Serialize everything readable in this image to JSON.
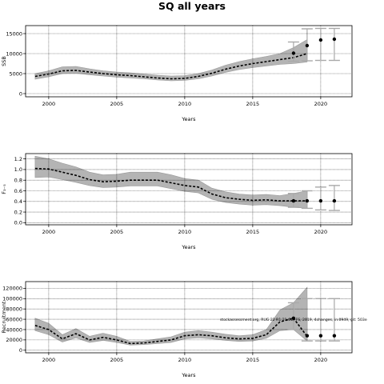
{
  "title": "SQ all years",
  "chart_data": [
    {
      "type": "line",
      "ylabel": "SSB",
      "xlabel": "Years",
      "xlim": [
        1998.3,
        2022.3
      ],
      "ylim": [
        -800,
        17000
      ],
      "xticks": [
        2000,
        2005,
        2010,
        2015,
        2020
      ],
      "yticks": [
        0,
        5000,
        10000,
        15000
      ],
      "ytick_labels": [
        "0",
        "5000",
        "10000",
        "15000"
      ],
      "grid": true,
      "series": [
        {
          "x": [
            1999,
            2000,
            2001,
            2002,
            2003,
            2004,
            2005,
            2006,
            2007,
            2008,
            2009,
            2010,
            2011,
            2012,
            2013,
            2014,
            2015,
            2016,
            2017,
            2018,
            2019
          ],
          "values": [
            4300,
            4900,
            5700,
            5800,
            5400,
            5000,
            4700,
            4500,
            4200,
            3900,
            3700,
            3800,
            4300,
            5100,
            6100,
            6900,
            7500,
            8000,
            8500,
            9000,
            10000
          ],
          "lower": [
            3600,
            4200,
            5000,
            5100,
            4700,
            4400,
            4100,
            3900,
            3700,
            3400,
            3200,
            3300,
            3700,
            4400,
            5300,
            6000,
            6500,
            6900,
            7300,
            7500,
            7900
          ],
          "upper": [
            5000,
            5700,
            6700,
            6800,
            6200,
            5700,
            5400,
            5200,
            4900,
            4600,
            4400,
            4500,
            5000,
            5900,
            7100,
            8000,
            8700,
            9300,
            10000,
            11500,
            13500
          ]
        }
      ],
      "projection": {
        "x": [
          2018,
          2019,
          2020,
          2021
        ],
        "values": [
          10100,
          12000,
          13400,
          13600
        ],
        "lower": [
          8100,
          8200,
          8300,
          8300
        ],
        "upper": [
          12900,
          16200,
          16300,
          16300
        ]
      }
    },
    {
      "type": "line",
      "ylabel": "F₃₋₅",
      "xlabel": "Years",
      "xlim": [
        1998.3,
        2022.3
      ],
      "ylim": [
        -0.04,
        1.3
      ],
      "xticks": [
        2000,
        2005,
        2010,
        2015,
        2020
      ],
      "yticks": [
        0.0,
        0.2,
        0.4,
        0.6,
        0.8,
        1.0,
        1.2
      ],
      "ytick_labels": [
        "0.0",
        "0.2",
        "0.4",
        "0.6",
        "0.8",
        "1.0",
        "1.2"
      ],
      "grid": true,
      "series": [
        {
          "x": [
            1999,
            2000,
            2001,
            2002,
            2003,
            2004,
            2005,
            2006,
            2007,
            2008,
            2009,
            2010,
            2011,
            2012,
            2013,
            2014,
            2015,
            2016,
            2017,
            2018,
            2019
          ],
          "values": [
            1.02,
            1.01,
            0.95,
            0.89,
            0.81,
            0.77,
            0.78,
            0.8,
            0.8,
            0.8,
            0.75,
            0.7,
            0.67,
            0.54,
            0.47,
            0.44,
            0.42,
            0.43,
            0.41,
            0.41,
            0.41
          ],
          "lower": [
            0.85,
            0.86,
            0.81,
            0.76,
            0.7,
            0.66,
            0.67,
            0.69,
            0.69,
            0.69,
            0.64,
            0.59,
            0.56,
            0.44,
            0.38,
            0.35,
            0.33,
            0.34,
            0.32,
            0.29,
            0.27
          ],
          "upper": [
            1.25,
            1.2,
            1.12,
            1.05,
            0.95,
            0.9,
            0.91,
            0.95,
            0.95,
            0.95,
            0.9,
            0.83,
            0.8,
            0.65,
            0.58,
            0.54,
            0.52,
            0.53,
            0.51,
            0.55,
            0.6
          ]
        }
      ],
      "projection": {
        "x": [
          2018,
          2019,
          2020,
          2021
        ],
        "values": [
          0.41,
          0.41,
          0.41,
          0.41
        ],
        "lower": [
          0.29,
          0.27,
          0.24,
          0.23
        ],
        "upper": [
          0.55,
          0.6,
          0.67,
          0.7
        ]
      }
    },
    {
      "type": "line",
      "ylabel": "Recruitment",
      "xlabel": "Years",
      "xlim": [
        1998.3,
        2022.3
      ],
      "ylim": [
        -5000,
        133000
      ],
      "xticks": [
        2000,
        2005,
        2010,
        2015,
        2020
      ],
      "yticks": [
        0,
        20000,
        40000,
        60000,
        80000,
        100000,
        120000
      ],
      "ytick_labels": [
        "0",
        "20000",
        "40000",
        "60000",
        "80000",
        "100000",
        "120000"
      ],
      "grid": true,
      "annotation": "stockassessment.org, RUG 22 R1 21 GB, FS, 2019, 4changes, in.0949, git: 503e",
      "series": [
        {
          "x": [
            1999,
            2000,
            2001,
            2002,
            2003,
            2004,
            2005,
            2006,
            2007,
            2008,
            2009,
            2010,
            2011,
            2012,
            2013,
            2014,
            2015,
            2016,
            2017,
            2018,
            2019
          ],
          "values": [
            48000,
            40000,
            22000,
            32000,
            20000,
            25000,
            20000,
            13000,
            14000,
            17000,
            20000,
            28000,
            30000,
            28000,
            24000,
            22000,
            23000,
            30000,
            55000,
            62000,
            27000
          ],
          "lower": [
            38000,
            30000,
            16000,
            24000,
            15000,
            19000,
            15000,
            10000,
            11000,
            13000,
            15000,
            22000,
            24000,
            22000,
            19000,
            17000,
            18000,
            23000,
            38000,
            40000,
            18000
          ],
          "upper": [
            62000,
            52000,
            30000,
            42000,
            27000,
            33000,
            27000,
            17000,
            18000,
            22000,
            26000,
            35000,
            38000,
            35000,
            31000,
            28000,
            30000,
            40000,
            78000,
            92000,
            122000
          ]
        }
      ],
      "projection": {
        "x": [
          2018,
          2019,
          2020,
          2021
        ],
        "values": [
          62000,
          28000,
          28000,
          28000
        ],
        "lower": [
          40000,
          18000,
          18000,
          18000
        ],
        "upper": [
          92000,
          100000,
          100000,
          100000
        ]
      }
    }
  ]
}
